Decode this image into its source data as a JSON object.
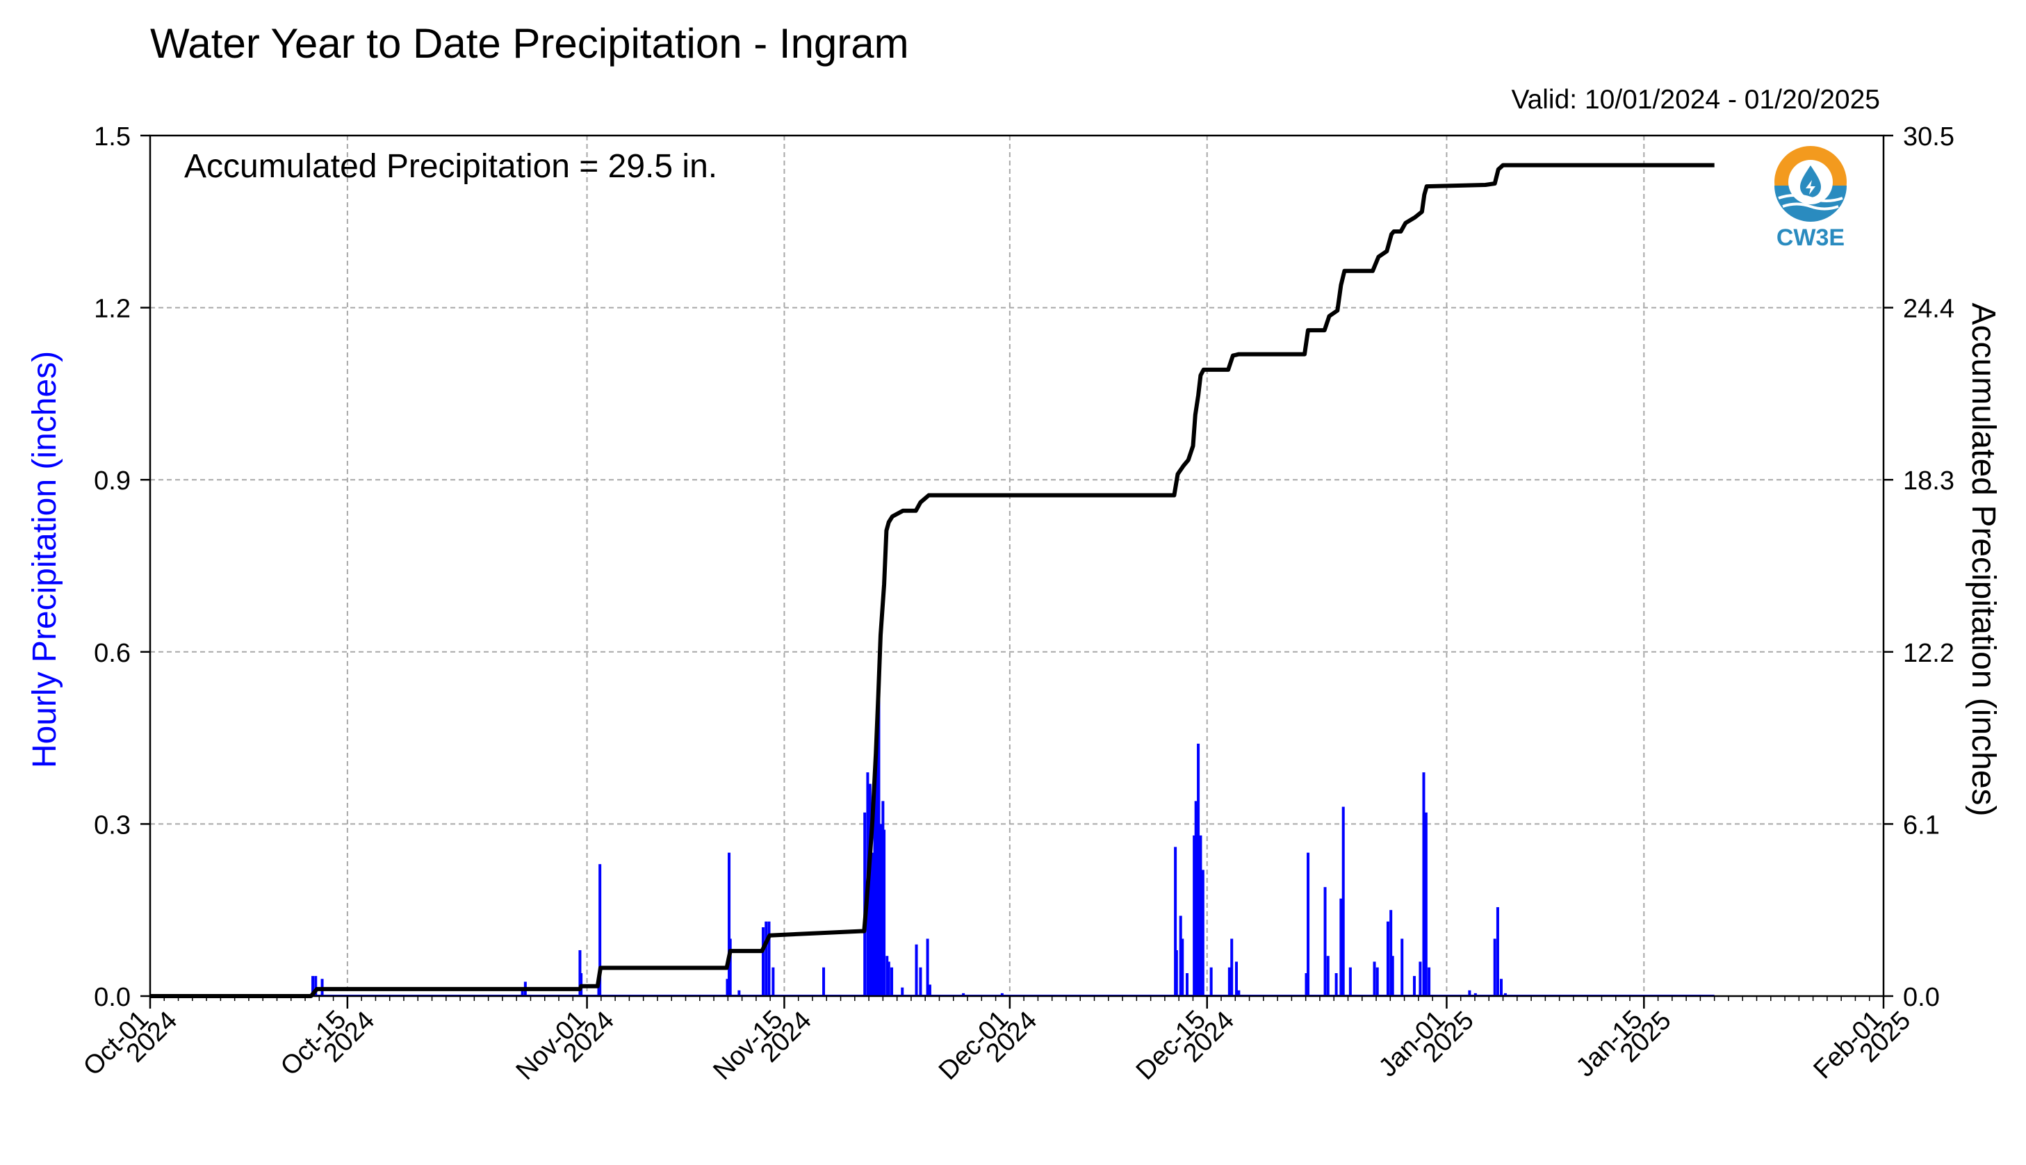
{
  "chart_data": {
    "type": "bar+line",
    "title": "Water Year to Date Precipitation - Ingram",
    "valid_text": "Valid: 10/01/2024 - 01/20/2025",
    "annotation": "Accumulated Precipitation = 29.5 in.",
    "left_axis": {
      "label": "Hourly Precipitation (inches)",
      "ylim": [
        0,
        1.5
      ],
      "ticks": [
        0.0,
        0.3,
        0.6,
        0.9,
        1.2,
        1.5
      ],
      "tick_labels": [
        "0.0",
        "0.3",
        "0.6",
        "0.9",
        "1.2",
        "1.5"
      ],
      "color": "#0000ff"
    },
    "right_axis": {
      "label": "Accumulated Precipitation (inches)",
      "ylim": [
        0,
        30.5
      ],
      "ticks": [
        0.0,
        6.1,
        12.2,
        18.3,
        24.4,
        30.5
      ],
      "tick_labels": [
        "0.0",
        "6.1",
        "12.2",
        "18.3",
        "24.4",
        "30.5"
      ],
      "color": "#000000"
    },
    "x_axis": {
      "xlim": [
        "2024-10-01",
        "2025-02-01"
      ],
      "ticks": [
        {
          "date": "2024-10-01",
          "line1": "Oct-01",
          "line2": "2024"
        },
        {
          "date": "2024-10-15",
          "line1": "Oct-15",
          "line2": "2024"
        },
        {
          "date": "2024-11-01",
          "line1": "Nov-01",
          "line2": "2024"
        },
        {
          "date": "2024-11-15",
          "line1": "Nov-15",
          "line2": "2024"
        },
        {
          "date": "2024-12-01",
          "line1": "Dec-01",
          "line2": "2024"
        },
        {
          "date": "2024-12-15",
          "line1": "Dec-15",
          "line2": "2024"
        },
        {
          "date": "2025-01-01",
          "line1": "Jan-01",
          "line2": "2025"
        },
        {
          "date": "2025-01-15",
          "line1": "Jan-15",
          "line2": "2025"
        },
        {
          "date": "2025-02-01",
          "line1": "Feb-01",
          "line2": "2025"
        }
      ],
      "grid": true
    },
    "series": [
      {
        "name": "Hourly Precipitation",
        "kind": "bar",
        "color": "#0000ff",
        "points": [
          [
            "2024-10-12 13:00",
            0.035
          ],
          [
            "2024-10-12 18:00",
            0.035
          ],
          [
            "2024-10-13 05:00",
            0.03
          ],
          [
            "2024-10-27 10:00",
            0.01
          ],
          [
            "2024-10-27 15:00",
            0.025
          ],
          [
            "2024-10-31 12:00",
            0.08
          ],
          [
            "2024-10-31 14:00",
            0.04
          ],
          [
            "2024-11-01 20:00",
            0.035
          ],
          [
            "2024-11-01 22:00",
            0.23
          ],
          [
            "2024-11-10 23:00",
            0.03
          ],
          [
            "2024-11-11 02:00",
            0.25
          ],
          [
            "2024-11-11 04:00",
            0.1
          ],
          [
            "2024-11-11 19:00",
            0.01
          ],
          [
            "2024-11-13 12:00",
            0.12
          ],
          [
            "2024-11-13 17:00",
            0.13
          ],
          [
            "2024-11-13 22:00",
            0.13
          ],
          [
            "2024-11-14 05:00",
            0.05
          ],
          [
            "2024-11-17 19:00",
            0.05
          ],
          [
            "2024-11-20 17:00",
            0.32
          ],
          [
            "2024-11-20 22:00",
            0.39
          ],
          [
            "2024-11-21 02:00",
            0.37
          ],
          [
            "2024-11-21 06:00",
            0.25
          ],
          [
            "2024-11-21 10:00",
            0.38
          ],
          [
            "2024-11-21 14:00",
            0.45
          ],
          [
            "2024-11-21 17:00",
            0.55
          ],
          [
            "2024-11-21 20:00",
            0.3
          ],
          [
            "2024-11-22 00:00",
            0.34
          ],
          [
            "2024-11-22 02:00",
            0.29
          ],
          [
            "2024-11-22 07:00",
            0.07
          ],
          [
            "2024-11-22 10:00",
            0.06
          ],
          [
            "2024-11-22 15:00",
            0.05
          ],
          [
            "2024-11-23 09:00",
            0.015
          ],
          [
            "2024-11-24 09:00",
            0.09
          ],
          [
            "2024-11-24 16:00",
            0.05
          ],
          [
            "2024-11-25 04:00",
            0.1
          ],
          [
            "2024-11-25 08:00",
            0.02
          ],
          [
            "2024-11-27 17:00",
            0.005
          ],
          [
            "2024-11-30 11:00",
            0.005
          ],
          [
            "2024-12-12 18:00",
            0.26
          ],
          [
            "2024-12-12 20:00",
            0.08
          ],
          [
            "2024-12-13 03:00",
            0.14
          ],
          [
            "2024-12-13 06:00",
            0.1
          ],
          [
            "2024-12-13 14:00",
            0.04
          ],
          [
            "2024-12-14 02:00",
            0.28
          ],
          [
            "2024-12-14 05:00",
            0.34
          ],
          [
            "2024-12-14 09:00",
            0.44
          ],
          [
            "2024-12-14 13:00",
            0.28
          ],
          [
            "2024-12-14 17:00",
            0.22
          ],
          [
            "2024-12-15 07:00",
            0.05
          ],
          [
            "2024-12-16 14:00",
            0.05
          ],
          [
            "2024-12-16 18:00",
            0.1
          ],
          [
            "2024-12-17 02:00",
            0.06
          ],
          [
            "2024-12-17 06:00",
            0.01
          ],
          [
            "2024-12-22 01:00",
            0.04
          ],
          [
            "2024-12-22 04:00",
            0.25
          ],
          [
            "2024-12-23 09:00",
            0.19
          ],
          [
            "2024-12-23 14:00",
            0.07
          ],
          [
            "2024-12-24 04:00",
            0.04
          ],
          [
            "2024-12-24 12:00",
            0.17
          ],
          [
            "2024-12-24 16:00",
            0.33
          ],
          [
            "2024-12-25 04:00",
            0.05
          ],
          [
            "2024-12-26 21:00",
            0.06
          ],
          [
            "2024-12-27 02:00",
            0.05
          ],
          [
            "2024-12-27 20:00",
            0.13
          ],
          [
            "2024-12-28 01:00",
            0.15
          ],
          [
            "2024-12-28 04:00",
            0.07
          ],
          [
            "2024-12-28 20:00",
            0.1
          ],
          [
            "2024-12-29 17:00",
            0.035
          ],
          [
            "2024-12-30 03:00",
            0.06
          ],
          [
            "2024-12-30 09:00",
            0.39
          ],
          [
            "2024-12-30 13:00",
            0.32
          ],
          [
            "2024-12-30 18:00",
            0.05
          ],
          [
            "2025-01-02 15:00",
            0.01
          ],
          [
            "2025-01-03 01:00",
            0.005
          ],
          [
            "2025-01-04 10:00",
            0.1
          ],
          [
            "2025-01-04 15:00",
            0.155
          ],
          [
            "2025-01-04 21:00",
            0.03
          ],
          [
            "2025-01-05 04:00",
            0.005
          ]
        ]
      },
      {
        "name": "Accumulated Precipitation",
        "kind": "step-line",
        "color": "#000000",
        "points": [
          [
            "2024-10-01 00:00",
            0.0
          ],
          [
            "2024-10-12 10:00",
            0.0
          ],
          [
            "2024-10-12 20:00",
            0.25
          ],
          [
            "2024-10-13 06:00",
            0.25
          ],
          [
            "2024-10-31 12:00",
            0.25
          ],
          [
            "2024-10-31 14:00",
            0.35
          ],
          [
            "2024-11-01 18:00",
            0.35
          ],
          [
            "2024-11-01 23:00",
            1.0
          ],
          [
            "2024-11-10 22:00",
            1.0
          ],
          [
            "2024-11-11 04:00",
            1.6
          ],
          [
            "2024-11-13 10:00",
            1.6
          ],
          [
            "2024-11-13 23:00",
            2.15
          ],
          [
            "2024-11-20 10:00",
            2.3
          ],
          [
            "2024-11-20 16:00",
            2.3
          ],
          [
            "2024-11-20 20:00",
            3.3
          ],
          [
            "2024-11-21 00:00",
            4.4
          ],
          [
            "2024-11-21 06:00",
            6.2
          ],
          [
            "2024-11-21 12:00",
            8.6
          ],
          [
            "2024-11-21 16:00",
            10.6
          ],
          [
            "2024-11-21 20:00",
            12.8
          ],
          [
            "2024-11-22 02:00",
            14.6
          ],
          [
            "2024-11-22 06:00",
            16.5
          ],
          [
            "2024-11-22 10:00",
            16.8
          ],
          [
            "2024-11-22 16:00",
            17.0
          ],
          [
            "2024-11-23 10:00",
            17.2
          ],
          [
            "2024-11-24 08:00",
            17.2
          ],
          [
            "2024-11-24 16:00",
            17.5
          ],
          [
            "2024-11-25 06:00",
            17.75
          ],
          [
            "2024-12-12 16:00",
            17.75
          ],
          [
            "2024-12-12 22:00",
            18.5
          ],
          [
            "2024-12-13 08:00",
            18.8
          ],
          [
            "2024-12-13 16:00",
            19.0
          ],
          [
            "2024-12-14 00:00",
            19.5
          ],
          [
            "2024-12-14 04:00",
            20.6
          ],
          [
            "2024-12-14 09:00",
            21.3
          ],
          [
            "2024-12-14 13:00",
            22.0
          ],
          [
            "2024-12-14 18:00",
            22.2
          ],
          [
            "2024-12-16 12:00",
            22.2
          ],
          [
            "2024-12-16 20:00",
            22.7
          ],
          [
            "2024-12-17 06:00",
            22.75
          ],
          [
            "2024-12-21 22:00",
            22.75
          ],
          [
            "2024-12-22 04:00",
            23.6
          ],
          [
            "2024-12-23 08:00",
            23.6
          ],
          [
            "2024-12-23 16:00",
            24.1
          ],
          [
            "2024-12-24 06:00",
            24.3
          ],
          [
            "2024-12-24 12:00",
            25.2
          ],
          [
            "2024-12-24 18:00",
            25.7
          ],
          [
            "2024-12-26 18:00",
            25.7
          ],
          [
            "2024-12-27 04:00",
            26.2
          ],
          [
            "2024-12-27 18:00",
            26.4
          ],
          [
            "2024-12-28 02:00",
            27.0
          ],
          [
            "2024-12-28 06:00",
            27.1
          ],
          [
            "2024-12-28 18:00",
            27.1
          ],
          [
            "2024-12-29 02:00",
            27.4
          ],
          [
            "2024-12-29 18:00",
            27.6
          ],
          [
            "2024-12-30 06:00",
            27.8
          ],
          [
            "2024-12-30 10:00",
            28.4
          ],
          [
            "2024-12-30 14:00",
            28.7
          ],
          [
            "2025-01-03 18:00",
            28.75
          ],
          [
            "2025-01-04 10:00",
            28.8
          ],
          [
            "2025-01-04 16:00",
            29.3
          ],
          [
            "2025-01-05 00:00",
            29.45
          ],
          [
            "2025-01-20 00:00",
            29.45
          ]
        ]
      }
    ],
    "logo_text": "CW3E"
  }
}
